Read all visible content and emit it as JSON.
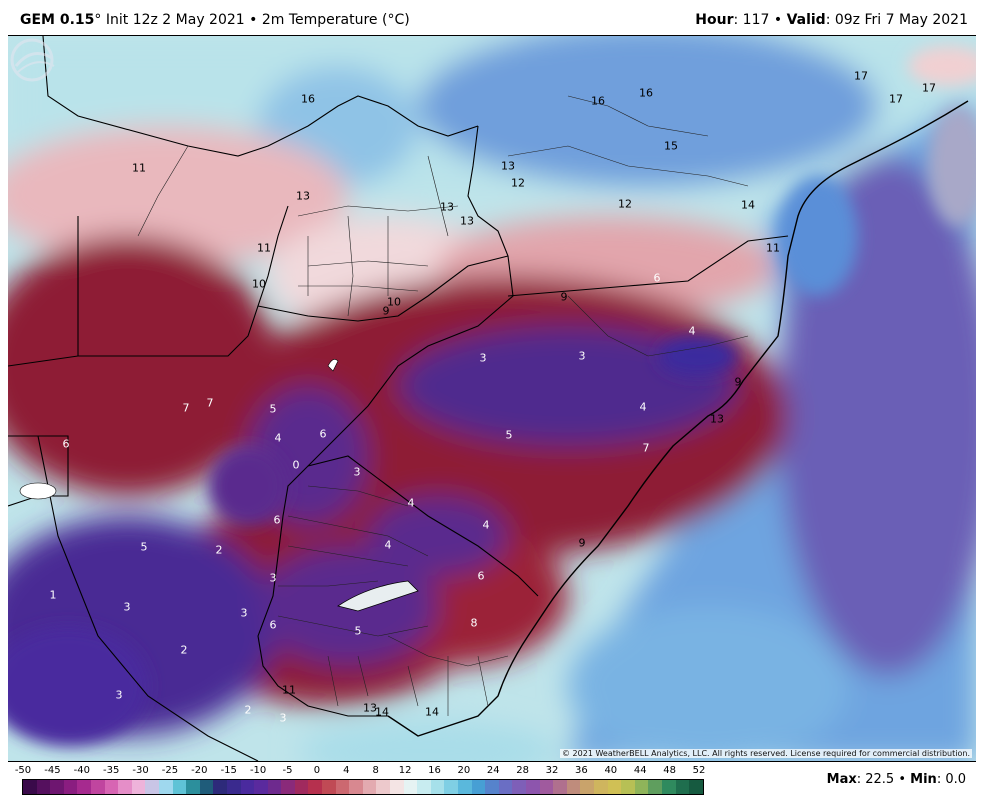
{
  "header": {
    "model": "GEM 0.15",
    "init": "° Init 12z 2 May 2021",
    "sep1": " • ",
    "field": "2m Temperature (°C)",
    "hour_label": "Hour",
    "hour_value": ": 117",
    "sep2": " • ",
    "valid_label": "Valid",
    "valid_value": ": 09z Fri 7 May 2021"
  },
  "map_labels": [
    "17",
    "17",
    "17",
    "16",
    "16",
    "16",
    "15",
    "13",
    "12",
    "12",
    "14",
    "11",
    "13",
    "13",
    "13",
    "11",
    "11",
    "10",
    "10",
    "9",
    "9",
    "6",
    "4",
    "3",
    "3",
    "9",
    "7",
    "7",
    "5",
    "4",
    "4",
    "6",
    "13",
    "5",
    "6",
    "0",
    "3",
    "7",
    "4",
    "6",
    "4",
    "9",
    "5",
    "2",
    "4",
    "6",
    "1",
    "3",
    "3",
    "3",
    "6",
    "2",
    "8",
    "5",
    "11",
    "3",
    "2",
    "3",
    "13",
    "14",
    "14"
  ],
  "colorbar": {
    "ticks": [
      "-50",
      "-45",
      "-40",
      "-35",
      "-30",
      "-25",
      "-20",
      "-15",
      "-10",
      "-5",
      "0",
      "4",
      "8",
      "12",
      "16",
      "20",
      "24",
      "28",
      "32",
      "36",
      "40",
      "44",
      "48",
      "52"
    ],
    "colors": [
      "#3a0a4a",
      "#55105e",
      "#6e1670",
      "#8a1d80",
      "#a62a8f",
      "#c0459f",
      "#d765b3",
      "#e58ec8",
      "#eeb3da",
      "#c9c5e6",
      "#9fd8ee",
      "#5fc3d6",
      "#2c8f9c",
      "#1f5c7a",
      "#2d2a7a",
      "#3a2a8e",
      "#4a2a9e",
      "#5a2a9e",
      "#6e2a8e",
      "#8a2a7a",
      "#a02a5e",
      "#b6304e",
      "#c04a55",
      "#cc6870",
      "#d88890",
      "#e3aab0",
      "#edc9cc",
      "#f4e4e4",
      "#e6f3f3",
      "#c8ecf0",
      "#a6e0ea",
      "#7fcfe4",
      "#5ab8dc",
      "#479fd4",
      "#5683cc",
      "#6a6ec4",
      "#7e5fb8",
      "#8d55ad",
      "#a05a9e",
      "#b0708e",
      "#bf8c7c",
      "#c9a36b",
      "#cfb55e",
      "#d0c055",
      "#b7c055",
      "#8fb45a",
      "#5f9e5e",
      "#2f8a5e",
      "#1f6e4e",
      "#165a40"
    ]
  },
  "copyright": "© 2021 WeatherBELL Analytics, LLC. All rights reserved. License required for commercial distribution.",
  "footer": {
    "max_label": "Max",
    "max_value": ": 22.5",
    "sep": " • ",
    "min_label": "Min",
    "min_value": ": 0.0"
  },
  "colors": {
    "cold_purple": "#4b2a8f",
    "warm_red": "#8b1a2e",
    "pink": "#e3a7ad",
    "light_cyan": "#c5ecef",
    "ocean_blue": "#5a8fd8"
  },
  "icons": {
    "logo": "weatherbell-logo"
  }
}
